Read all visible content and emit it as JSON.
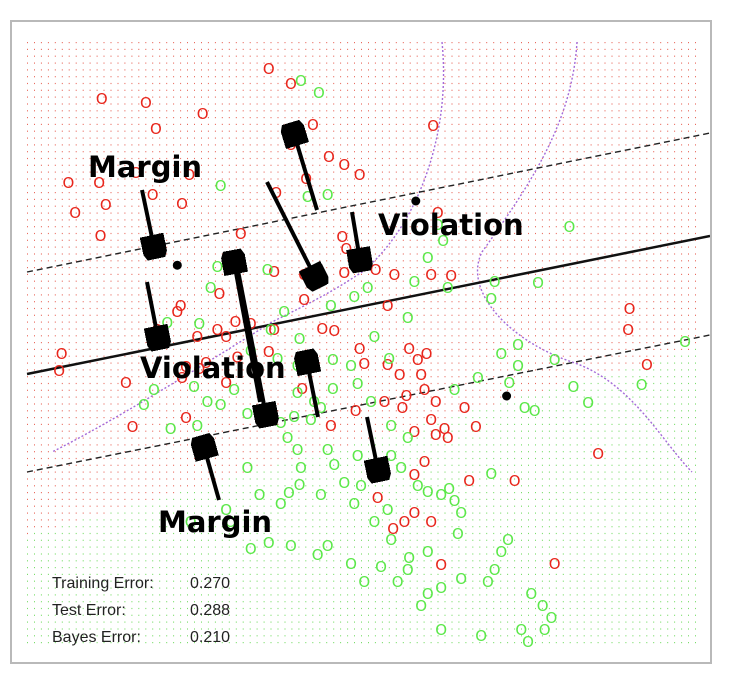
{
  "chart_data": {
    "type": "scatter",
    "classes": [
      {
        "label": "O",
        "color": "#e8261c"
      },
      {
        "label": "O",
        "color": "#5ce84a"
      }
    ],
    "grid_colors": {
      "red_region": "#e23a2a",
      "green_region": "#4fd23a"
    },
    "boundary": {
      "solid": [
        [
          0,
          0.18
        ],
        [
          1,
          0.49
        ]
      ],
      "upper": [
        [
          0,
          0.5
        ],
        [
          1,
          0.79
        ]
      ],
      "lower": [
        [
          0,
          -0.12
        ],
        [
          1,
          0.21
        ]
      ]
    },
    "points_red": [
      [
        0.362,
        0.955
      ],
      [
        0.112,
        0.905
      ],
      [
        0.178,
        0.898
      ],
      [
        0.395,
        0.93
      ],
      [
        0.263,
        0.88
      ],
      [
        0.608,
        0.86
      ],
      [
        0.193,
        0.855
      ],
      [
        0.428,
        0.862
      ],
      [
        0.395,
        0.828
      ],
      [
        0.452,
        0.808
      ],
      [
        0.062,
        0.765
      ],
      [
        0.108,
        0.765
      ],
      [
        0.163,
        0.782
      ],
      [
        0.243,
        0.778
      ],
      [
        0.418,
        0.772
      ],
      [
        0.475,
        0.795
      ],
      [
        0.498,
        0.778
      ],
      [
        0.373,
        0.748
      ],
      [
        0.072,
        0.715
      ],
      [
        0.118,
        0.728
      ],
      [
        0.232,
        0.73
      ],
      [
        0.188,
        0.745
      ],
      [
        0.615,
        0.715
      ],
      [
        0.32,
        0.68
      ],
      [
        0.472,
        0.675
      ],
      [
        0.11,
        0.677
      ],
      [
        0.478,
        0.655
      ],
      [
        0.475,
        0.615
      ],
      [
        0.522,
        0.62
      ],
      [
        0.415,
        0.612
      ],
      [
        0.37,
        0.617
      ],
      [
        0.55,
        0.612
      ],
      [
        0.605,
        0.612
      ],
      [
        0.635,
        0.61
      ],
      [
        0.23,
        0.56
      ],
      [
        0.288,
        0.58
      ],
      [
        0.285,
        0.52
      ],
      [
        0.312,
        0.533
      ],
      [
        0.335,
        0.53
      ],
      [
        0.37,
        0.52
      ],
      [
        0.415,
        0.57
      ],
      [
        0.54,
        0.56
      ],
      [
        0.442,
        0.522
      ],
      [
        0.46,
        0.518
      ],
      [
        0.255,
        0.508
      ],
      [
        0.298,
        0.508
      ],
      [
        0.315,
        0.474
      ],
      [
        0.362,
        0.483
      ],
      [
        0.498,
        0.488
      ],
      [
        0.572,
        0.488
      ],
      [
        0.505,
        0.463
      ],
      [
        0.54,
        0.462
      ],
      [
        0.585,
        0.47
      ],
      [
        0.558,
        0.445
      ],
      [
        0.59,
        0.445
      ],
      [
        0.595,
        0.42
      ],
      [
        0.535,
        0.4
      ],
      [
        0.568,
        0.41
      ],
      [
        0.598,
        0.48
      ],
      [
        0.492,
        0.385
      ],
      [
        0.455,
        0.36
      ],
      [
        0.605,
        0.37
      ],
      [
        0.58,
        0.35
      ],
      [
        0.612,
        0.345
      ],
      [
        0.63,
        0.34
      ],
      [
        0.655,
        0.39
      ],
      [
        0.048,
        0.452
      ],
      [
        0.148,
        0.432
      ],
      [
        0.232,
        0.44
      ],
      [
        0.412,
        0.422
      ],
      [
        0.158,
        0.358
      ],
      [
        0.238,
        0.373
      ],
      [
        0.238,
        0.458
      ],
      [
        0.258,
        0.455
      ],
      [
        0.268,
        0.465
      ],
      [
        0.052,
        0.48
      ],
      [
        0.298,
        0.432
      ],
      [
        0.225,
        0.55
      ],
      [
        0.195,
        0.52
      ],
      [
        0.562,
        0.39
      ],
      [
        0.612,
        0.4
      ],
      [
        0.662,
        0.268
      ],
      [
        0.855,
        0.313
      ],
      [
        0.902,
        0.555
      ],
      [
        0.9,
        0.52
      ],
      [
        0.928,
        0.462
      ],
      [
        0.548,
        0.188
      ],
      [
        0.565,
        0.2
      ],
      [
        0.605,
        0.2
      ],
      [
        0.58,
        0.215
      ],
      [
        0.525,
        0.24
      ],
      [
        0.73,
        0.268
      ],
      [
        0.79,
        0.13
      ],
      [
        0.62,
        0.128
      ],
      [
        0.672,
        0.358
      ],
      [
        0.625,
        0.355
      ],
      [
        0.58,
        0.278
      ],
      [
        0.595,
        0.3
      ]
    ],
    "points_green": [
      [
        0.41,
        0.935
      ],
      [
        0.437,
        0.915
      ],
      [
        0.29,
        0.76
      ],
      [
        0.45,
        0.745
      ],
      [
        0.42,
        0.742
      ],
      [
        0.615,
        0.695
      ],
      [
        0.623,
        0.668
      ],
      [
        0.695,
        0.572
      ],
      [
        0.7,
        0.6
      ],
      [
        0.765,
        0.598
      ],
      [
        0.812,
        0.692
      ],
      [
        0.63,
        0.59
      ],
      [
        0.6,
        0.64
      ],
      [
        0.58,
        0.6
      ],
      [
        0.51,
        0.59
      ],
      [
        0.49,
        0.575
      ],
      [
        0.455,
        0.56
      ],
      [
        0.385,
        0.55
      ],
      [
        0.365,
        0.52
      ],
      [
        0.335,
        0.485
      ],
      [
        0.258,
        0.53
      ],
      [
        0.21,
        0.532
      ],
      [
        0.275,
        0.59
      ],
      [
        0.285,
        0.625
      ],
      [
        0.36,
        0.62
      ],
      [
        0.57,
        0.54
      ],
      [
        0.52,
        0.508
      ],
      [
        0.542,
        0.472
      ],
      [
        0.495,
        0.43
      ],
      [
        0.458,
        0.422
      ],
      [
        0.405,
        0.415
      ],
      [
        0.43,
        0.4
      ],
      [
        0.4,
        0.375
      ],
      [
        0.405,
        0.46
      ],
      [
        0.375,
        0.472
      ],
      [
        0.408,
        0.505
      ],
      [
        0.458,
        0.47
      ],
      [
        0.485,
        0.46
      ],
      [
        0.515,
        0.4
      ],
      [
        0.545,
        0.36
      ],
      [
        0.57,
        0.34
      ],
      [
        0.64,
        0.42
      ],
      [
        0.675,
        0.44
      ],
      [
        0.71,
        0.48
      ],
      [
        0.735,
        0.495
      ],
      [
        0.79,
        0.47
      ],
      [
        0.818,
        0.425
      ],
      [
        0.84,
        0.398
      ],
      [
        0.92,
        0.428
      ],
      [
        0.985,
        0.5
      ],
      [
        0.722,
        0.432
      ],
      [
        0.745,
        0.39
      ],
      [
        0.76,
        0.385
      ],
      [
        0.545,
        0.31
      ],
      [
        0.495,
        0.31
      ],
      [
        0.46,
        0.295
      ],
      [
        0.475,
        0.265
      ],
      [
        0.45,
        0.32
      ],
      [
        0.405,
        0.32
      ],
      [
        0.41,
        0.29
      ],
      [
        0.39,
        0.34
      ],
      [
        0.38,
        0.365
      ],
      [
        0.425,
        0.37
      ],
      [
        0.44,
        0.39
      ],
      [
        0.56,
        0.29
      ],
      [
        0.585,
        0.26
      ],
      [
        0.6,
        0.25
      ],
      [
        0.62,
        0.245
      ],
      [
        0.64,
        0.235
      ],
      [
        0.65,
        0.215
      ],
      [
        0.645,
        0.18
      ],
      [
        0.6,
        0.15
      ],
      [
        0.57,
        0.12
      ],
      [
        0.53,
        0.125
      ],
      [
        0.505,
        0.1
      ],
      [
        0.485,
        0.13
      ],
      [
        0.435,
        0.145
      ],
      [
        0.45,
        0.16
      ],
      [
        0.395,
        0.16
      ],
      [
        0.362,
        0.165
      ],
      [
        0.335,
        0.155
      ],
      [
        0.305,
        0.2
      ],
      [
        0.245,
        0.2
      ],
      [
        0.298,
        0.22
      ],
      [
        0.348,
        0.245
      ],
      [
        0.392,
        0.248
      ],
      [
        0.408,
        0.262
      ],
      [
        0.49,
        0.23
      ],
      [
        0.52,
        0.2
      ],
      [
        0.555,
        0.1
      ],
      [
        0.572,
        0.14
      ],
      [
        0.6,
        0.08
      ],
      [
        0.62,
        0.09
      ],
      [
        0.65,
        0.105
      ],
      [
        0.62,
        0.02
      ],
      [
        0.68,
        0.01
      ],
      [
        0.69,
        0.1
      ],
      [
        0.7,
        0.12
      ],
      [
        0.71,
        0.15
      ],
      [
        0.72,
        0.17
      ],
      [
        0.755,
        0.08
      ],
      [
        0.772,
        0.06
      ],
      [
        0.775,
        0.02
      ],
      [
        0.785,
        0.04
      ],
      [
        0.75,
        0.0
      ],
      [
        0.74,
        0.02
      ],
      [
        0.59,
        0.06
      ],
      [
        0.54,
        0.22
      ],
      [
        0.5,
        0.26
      ],
      [
        0.44,
        0.245
      ],
      [
        0.38,
        0.23
      ],
      [
        0.33,
        0.29
      ],
      [
        0.31,
        0.42
      ],
      [
        0.27,
        0.4
      ],
      [
        0.33,
        0.38
      ],
      [
        0.175,
        0.395
      ],
      [
        0.19,
        0.42
      ],
      [
        0.215,
        0.355
      ],
      [
        0.255,
        0.36
      ],
      [
        0.29,
        0.395
      ],
      [
        0.25,
        0.425
      ],
      [
        0.735,
        0.46
      ],
      [
        0.545,
        0.17
      ],
      [
        0.695,
        0.28
      ],
      [
        0.632,
        0.255
      ]
    ],
    "support_vectors": [
      [
        0.225,
        0.628
      ],
      [
        0.582,
        0.735
      ],
      [
        0.718,
        0.41
      ]
    ],
    "annotations": [
      "Margin",
      "Violation",
      "Violation",
      "Margin"
    ],
    "stats": [
      {
        "label": "Training Error:",
        "value": "0.270"
      },
      {
        "label": "Test Error:",
        "value": "0.288"
      },
      {
        "label": "Bayes Error:",
        "value": "0.210"
      }
    ]
  }
}
